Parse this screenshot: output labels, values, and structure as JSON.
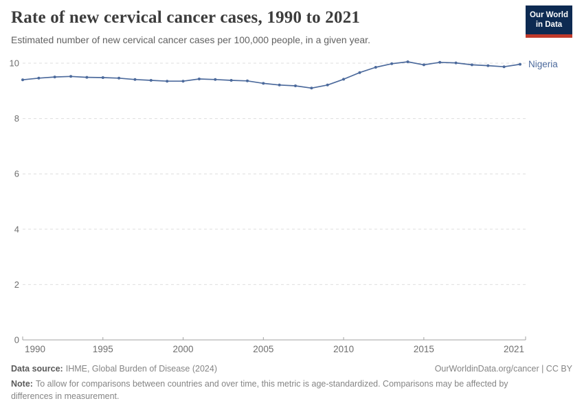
{
  "header": {
    "title": "Rate of new cervical cancer cases, 1990 to 2021",
    "subtitle": "Estimated number of new cervical cancer cases per 100,000 people, in a given year."
  },
  "logo": {
    "line1": "Our World",
    "line2": "in Data",
    "bg_color": "#0d2a52",
    "stripe_color": "#c0392b"
  },
  "chart_data": {
    "type": "line",
    "title": "Rate of new cervical cancer cases, 1990 to 2021",
    "x": [
      1990,
      1991,
      1992,
      1993,
      1994,
      1995,
      1996,
      1997,
      1998,
      1999,
      2000,
      2001,
      2002,
      2003,
      2004,
      2005,
      2006,
      2007,
      2008,
      2009,
      2010,
      2011,
      2012,
      2013,
      2014,
      2015,
      2016,
      2017,
      2018,
      2019,
      2020,
      2021
    ],
    "series": [
      {
        "name": "Nigeria",
        "color": "#4c6a9c",
        "values": [
          9.4,
          9.46,
          9.5,
          9.52,
          9.49,
          9.48,
          9.46,
          9.41,
          9.38,
          9.35,
          9.35,
          9.43,
          9.41,
          9.38,
          9.36,
          9.27,
          9.21,
          9.18,
          9.1,
          9.21,
          9.42,
          9.66,
          9.85,
          9.98,
          10.05,
          9.94,
          10.03,
          10.01,
          9.94,
          9.91,
          9.87,
          9.96
        ]
      }
    ],
    "xlabel": "",
    "ylabel": "",
    "xlim": [
      1990,
      2021
    ],
    "ylim": [
      0,
      10
    ],
    "x_ticks": [
      1990,
      1995,
      2000,
      2005,
      2010,
      2015,
      2021
    ],
    "y_ticks": [
      0,
      2,
      4,
      6,
      8,
      10
    ],
    "grid": "horizontal dashed",
    "legend_position": "end-of-line label"
  },
  "footer": {
    "source_label": "Data source:",
    "source_value": "IHME, Global Burden of Disease (2024)",
    "link_text": "OurWorldinData.org/cancer | CC BY",
    "note_label": "Note:",
    "note_text": "To allow for comparisons between countries and over time, this metric is age-standardized. Comparisons may be affected by differences in measurement."
  },
  "colors": {
    "line": "#4c6a9c",
    "grid": "#dedede",
    "axis": "#a1a1a1",
    "tick_label": "#6e6e6e",
    "title": "#3c3c3c",
    "subtitle": "#616161",
    "footer_text": "#858585",
    "footer_bold": "#5a5a5a"
  }
}
